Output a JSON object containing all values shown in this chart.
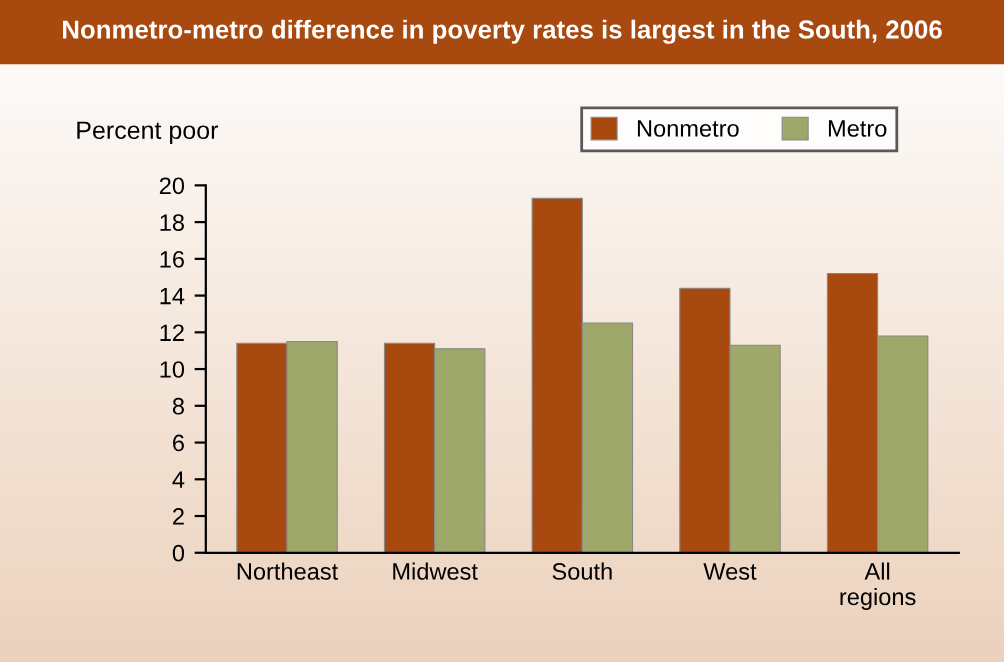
{
  "chart_data": {
    "type": "bar",
    "title": "Nonmetro-metro difference in poverty rates is largest in the South, 2006",
    "ylabel": "Percent poor",
    "categories": [
      "Northeast",
      "Midwest",
      "South",
      "West",
      "All\nregions"
    ],
    "series": [
      {
        "name": "Nonmetro",
        "color": "#a84a10",
        "values": [
          11.4,
          11.4,
          19.3,
          14.4,
          15.2
        ]
      },
      {
        "name": "Metro",
        "color": "#9ea86a",
        "values": [
          11.5,
          11.1,
          12.5,
          11.3,
          11.8
        ]
      }
    ],
    "ylim": [
      0,
      20
    ],
    "yticks": [
      0,
      2,
      4,
      6,
      8,
      10,
      12,
      14,
      16,
      18,
      20
    ],
    "grid": false,
    "legend": "top right"
  }
}
